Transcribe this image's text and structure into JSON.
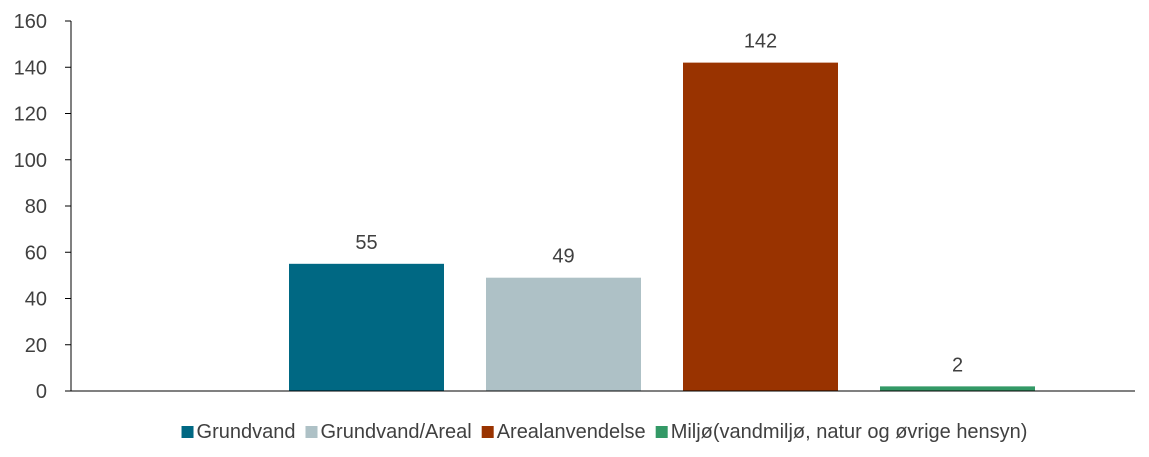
{
  "chart_data": {
    "type": "bar",
    "title": "",
    "xlabel": "",
    "ylabel": "",
    "ylim": [
      0,
      160
    ],
    "yticks": [
      0,
      20,
      40,
      60,
      80,
      100,
      120,
      140,
      160
    ],
    "grid": false,
    "legend_position": "bottom",
    "series": [
      {
        "name": "Grundvand",
        "value": 55,
        "label": "55",
        "color": "#006883"
      },
      {
        "name": "Grundvand/Areal",
        "value": 49,
        "label": "49",
        "color": "#aec1c6"
      },
      {
        "name": "Arealanvendelse",
        "value": 142,
        "label": "142",
        "color": "#993300"
      },
      {
        "name": "Miljø(vandmiljø, natur og øvrige hensyn)",
        "value": 2,
        "label": "2",
        "color": "#339966"
      }
    ],
    "colors": {
      "axis": "#000000",
      "text": "#404040"
    }
  }
}
